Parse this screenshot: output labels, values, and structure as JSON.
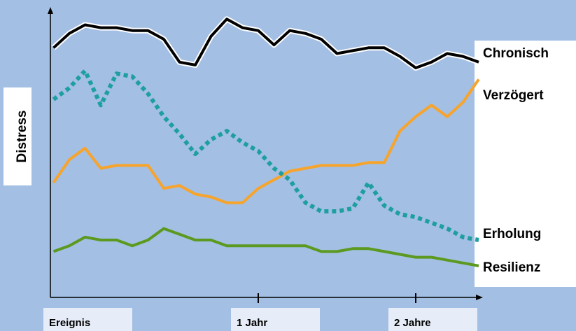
{
  "chart_data": {
    "type": "line",
    "ylabel": "Distress",
    "categories": [
      "Ereignis",
      null,
      null,
      null,
      null,
      null,
      null,
      null,
      null,
      null,
      null,
      null,
      null,
      "1 Jahr",
      null,
      null,
      null,
      null,
      null,
      null,
      null,
      null,
      null,
      "2 Jahre",
      null,
      null,
      null,
      null
    ],
    "ylim": [
      0,
      100
    ],
    "series": [
      {
        "name": "Chronisch",
        "color": "#000000",
        "style": "solid",
        "values": [
          87,
          92,
          95,
          94,
          94,
          93,
          93,
          90,
          82,
          81,
          91,
          97,
          94,
          93,
          88,
          93,
          92,
          90,
          85,
          86,
          87,
          87,
          84,
          80,
          82,
          85,
          84,
          82
        ]
      },
      {
        "name": "Verzögert",
        "color": "#f7a42c",
        "style": "solid",
        "values": [
          40,
          48,
          52,
          45,
          46,
          46,
          46,
          38,
          39,
          36,
          35,
          33,
          33,
          38,
          41,
          44,
          45,
          46,
          46,
          46,
          47,
          47,
          58,
          63,
          67,
          63,
          68,
          76
        ]
      },
      {
        "name": "Erholung",
        "color": "#1e9f9f",
        "style": "dotted",
        "values": [
          69,
          73,
          79,
          67,
          78,
          77,
          71,
          63,
          57,
          50,
          55,
          58,
          54,
          51,
          45,
          41,
          33,
          30,
          30,
          31,
          40,
          32,
          29,
          28,
          26,
          24,
          21,
          20
        ]
      },
      {
        "name": "Resilienz",
        "color": "#5b9a1f",
        "style": "solid",
        "values": [
          16,
          18,
          21,
          20,
          20,
          18,
          20,
          24,
          22,
          20,
          20,
          18,
          18,
          18,
          18,
          18,
          18,
          16,
          16,
          17,
          17,
          16,
          15,
          14,
          14,
          13,
          12,
          11
        ]
      }
    ]
  }
}
